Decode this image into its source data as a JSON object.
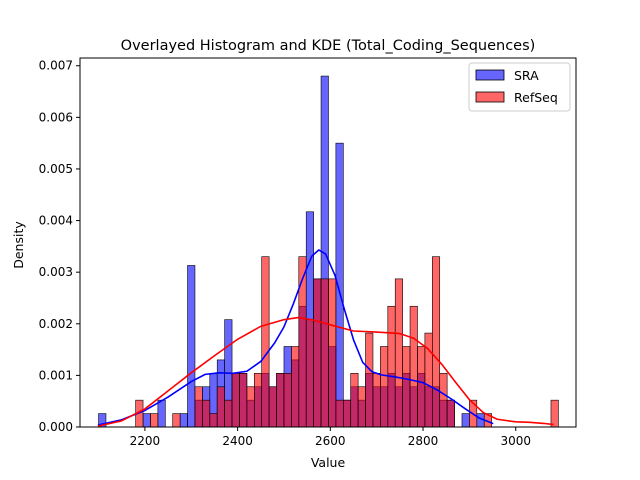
{
  "chart_data": {
    "type": "histogram",
    "title": "Overlayed Histogram and KDE (Total_Coding_Sequences)",
    "xlabel": "Value",
    "ylabel": "Density",
    "xlim": [
      2060,
      3130
    ],
    "ylim": [
      0,
      0.00715
    ],
    "x_ticks": [
      2200,
      2400,
      2600,
      2800,
      3000
    ],
    "x_tick_labels": [
      "2200",
      "2400",
      "2600",
      "2800",
      "3000"
    ],
    "y_ticks": [
      0,
      0.001,
      0.002,
      0.003,
      0.004,
      0.005,
      0.006,
      0.007
    ],
    "y_tick_labels": [
      "0.000",
      "0.001",
      "0.002",
      "0.003",
      "0.004",
      "0.005",
      "0.006",
      "0.007"
    ],
    "legend_position": "top-right",
    "series": [
      {
        "name": "SRA",
        "color": "#0000ff",
        "bars": [
          [
            2100,
            2116,
            0.00026
          ],
          [
            2196,
            2212,
            0.00026
          ],
          [
            2228,
            2244,
            0.00052
          ],
          [
            2276,
            2292,
            0.00026
          ],
          [
            2292,
            2308,
            0.00313
          ],
          [
            2308,
            2324,
            0.00052
          ],
          [
            2324,
            2340,
            0.00078
          ],
          [
            2340,
            2356,
            0.00104
          ],
          [
            2356,
            2372,
            0.0013
          ],
          [
            2372,
            2388,
            0.00208
          ],
          [
            2388,
            2404,
            0.00104
          ],
          [
            2404,
            2420,
            0.00104
          ],
          [
            2420,
            2436,
            0.00052
          ],
          [
            2436,
            2452,
            0.00078
          ],
          [
            2452,
            2468,
            0.00104
          ],
          [
            2468,
            2484,
            0.00078
          ],
          [
            2484,
            2500,
            0.00104
          ],
          [
            2500,
            2516,
            0.00156
          ],
          [
            2516,
            2532,
            0.0013
          ],
          [
            2532,
            2548,
            0.00234
          ],
          [
            2548,
            2564,
            0.00417
          ],
          [
            2564,
            2580,
            0.00287
          ],
          [
            2580,
            2596,
            0.0068
          ],
          [
            2596,
            2612,
            0.00156
          ],
          [
            2612,
            2628,
            0.0055
          ],
          [
            2628,
            2644,
            0.00052
          ],
          [
            2644,
            2660,
            0.00078
          ],
          [
            2660,
            2676,
            0.00052
          ],
          [
            2676,
            2692,
            0.00104
          ],
          [
            2692,
            2708,
            0.00078
          ],
          [
            2708,
            2724,
            0.00078
          ],
          [
            2724,
            2740,
            0.00104
          ],
          [
            2740,
            2756,
            0.00078
          ],
          [
            2756,
            2772,
            0.00104
          ],
          [
            2772,
            2788,
            0.00078
          ],
          [
            2788,
            2804,
            0.00104
          ],
          [
            2804,
            2820,
            0.00078
          ],
          [
            2820,
            2836,
            0.00078
          ],
          [
            2836,
            2852,
            0.00052
          ],
          [
            2852,
            2868,
            0.00052
          ],
          [
            2884,
            2900,
            0.00026
          ],
          [
            2916,
            2932,
            0.00026
          ]
        ],
        "kde": [
          [
            2100,
            4e-05
          ],
          [
            2150,
            0.00014
          ],
          [
            2200,
            0.00032
          ],
          [
            2250,
            0.00058
          ],
          [
            2300,
            0.00088
          ],
          [
            2330,
            0.00102
          ],
          [
            2360,
            0.00105
          ],
          [
            2390,
            0.00104
          ],
          [
            2420,
            0.00108
          ],
          [
            2450,
            0.00127
          ],
          [
            2480,
            0.00163
          ],
          [
            2500,
            0.00194
          ],
          [
            2520,
            0.00238
          ],
          [
            2540,
            0.00287
          ],
          [
            2560,
            0.00331
          ],
          [
            2575,
            0.00343
          ],
          [
            2590,
            0.00335
          ],
          [
            2610,
            0.00294
          ],
          [
            2630,
            0.00229
          ],
          [
            2650,
            0.00169
          ],
          [
            2670,
            0.00125
          ],
          [
            2690,
            0.00107
          ],
          [
            2710,
            0.00101
          ],
          [
            2740,
            0.00097
          ],
          [
            2770,
            0.00092
          ],
          [
            2800,
            0.00086
          ],
          [
            2830,
            0.00072
          ],
          [
            2860,
            0.00055
          ],
          [
            2890,
            0.00036
          ],
          [
            2920,
            0.00018
          ],
          [
            2950,
            7e-05
          ]
        ]
      },
      {
        "name": "RefSeq",
        "color": "#ff0000",
        "bars": [
          [
            2180,
            2196,
            0.00052
          ],
          [
            2212,
            2228,
            0.00026
          ],
          [
            2260,
            2276,
            0.00026
          ],
          [
            2308,
            2324,
            0.00078
          ],
          [
            2324,
            2340,
            0.00052
          ],
          [
            2340,
            2356,
            0.00026
          ],
          [
            2356,
            2372,
            0.00078
          ],
          [
            2372,
            2388,
            0.00052
          ],
          [
            2388,
            2404,
            0.00104
          ],
          [
            2404,
            2420,
            0.00104
          ],
          [
            2420,
            2436,
            0.00078
          ],
          [
            2436,
            2452,
            0.00104
          ],
          [
            2452,
            2468,
            0.0033
          ],
          [
            2468,
            2484,
            0.00078
          ],
          [
            2484,
            2500,
            0.00104
          ],
          [
            2500,
            2516,
            0.00104
          ],
          [
            2516,
            2532,
            0.00156
          ],
          [
            2532,
            2548,
            0.0033
          ],
          [
            2548,
            2564,
            0.00208
          ],
          [
            2564,
            2580,
            0.00287
          ],
          [
            2580,
            2596,
            0.00287
          ],
          [
            2596,
            2612,
            0.00287
          ],
          [
            2612,
            2628,
            0.00052
          ],
          [
            2628,
            2644,
            0.00052
          ],
          [
            2644,
            2660,
            0.00104
          ],
          [
            2660,
            2676,
            0.00078
          ],
          [
            2676,
            2692,
            0.00182
          ],
          [
            2692,
            2708,
            0.00104
          ],
          [
            2708,
            2724,
            0.00156
          ],
          [
            2724,
            2740,
            0.00234
          ],
          [
            2740,
            2756,
            0.00287
          ],
          [
            2756,
            2772,
            0.00156
          ],
          [
            2772,
            2788,
            0.00234
          ],
          [
            2788,
            2804,
            0.00156
          ],
          [
            2804,
            2820,
            0.00182
          ],
          [
            2820,
            2836,
            0.0033
          ],
          [
            2836,
            2852,
            0.00104
          ],
          [
            2852,
            2868,
            0.00052
          ],
          [
            2900,
            2916,
            0.00052
          ],
          [
            2932,
            2948,
            0.00026
          ],
          [
            3076,
            3092,
            0.00052
          ]
        ],
        "kde": [
          [
            2100,
            2e-05
          ],
          [
            2150,
            0.00012
          ],
          [
            2200,
            0.00035
          ],
          [
            2250,
            0.0007
          ],
          [
            2300,
            0.00105
          ],
          [
            2350,
            0.00138
          ],
          [
            2400,
            0.0017
          ],
          [
            2450,
            0.00195
          ],
          [
            2500,
            0.00208
          ],
          [
            2530,
            0.00212
          ],
          [
            2560,
            0.00208
          ],
          [
            2600,
            0.00198
          ],
          [
            2650,
            0.00186
          ],
          [
            2700,
            0.00184
          ],
          [
            2750,
            0.00181
          ],
          [
            2780,
            0.00172
          ],
          [
            2810,
            0.00152
          ],
          [
            2840,
            0.00122
          ],
          [
            2870,
            0.00087
          ],
          [
            2900,
            0.00053
          ],
          [
            2930,
            0.00028
          ],
          [
            2960,
            0.00015
          ],
          [
            3000,
            0.0001
          ],
          [
            3030,
            9e-05
          ],
          [
            3060,
            7e-05
          ],
          [
            3080,
            5e-05
          ]
        ]
      }
    ]
  }
}
